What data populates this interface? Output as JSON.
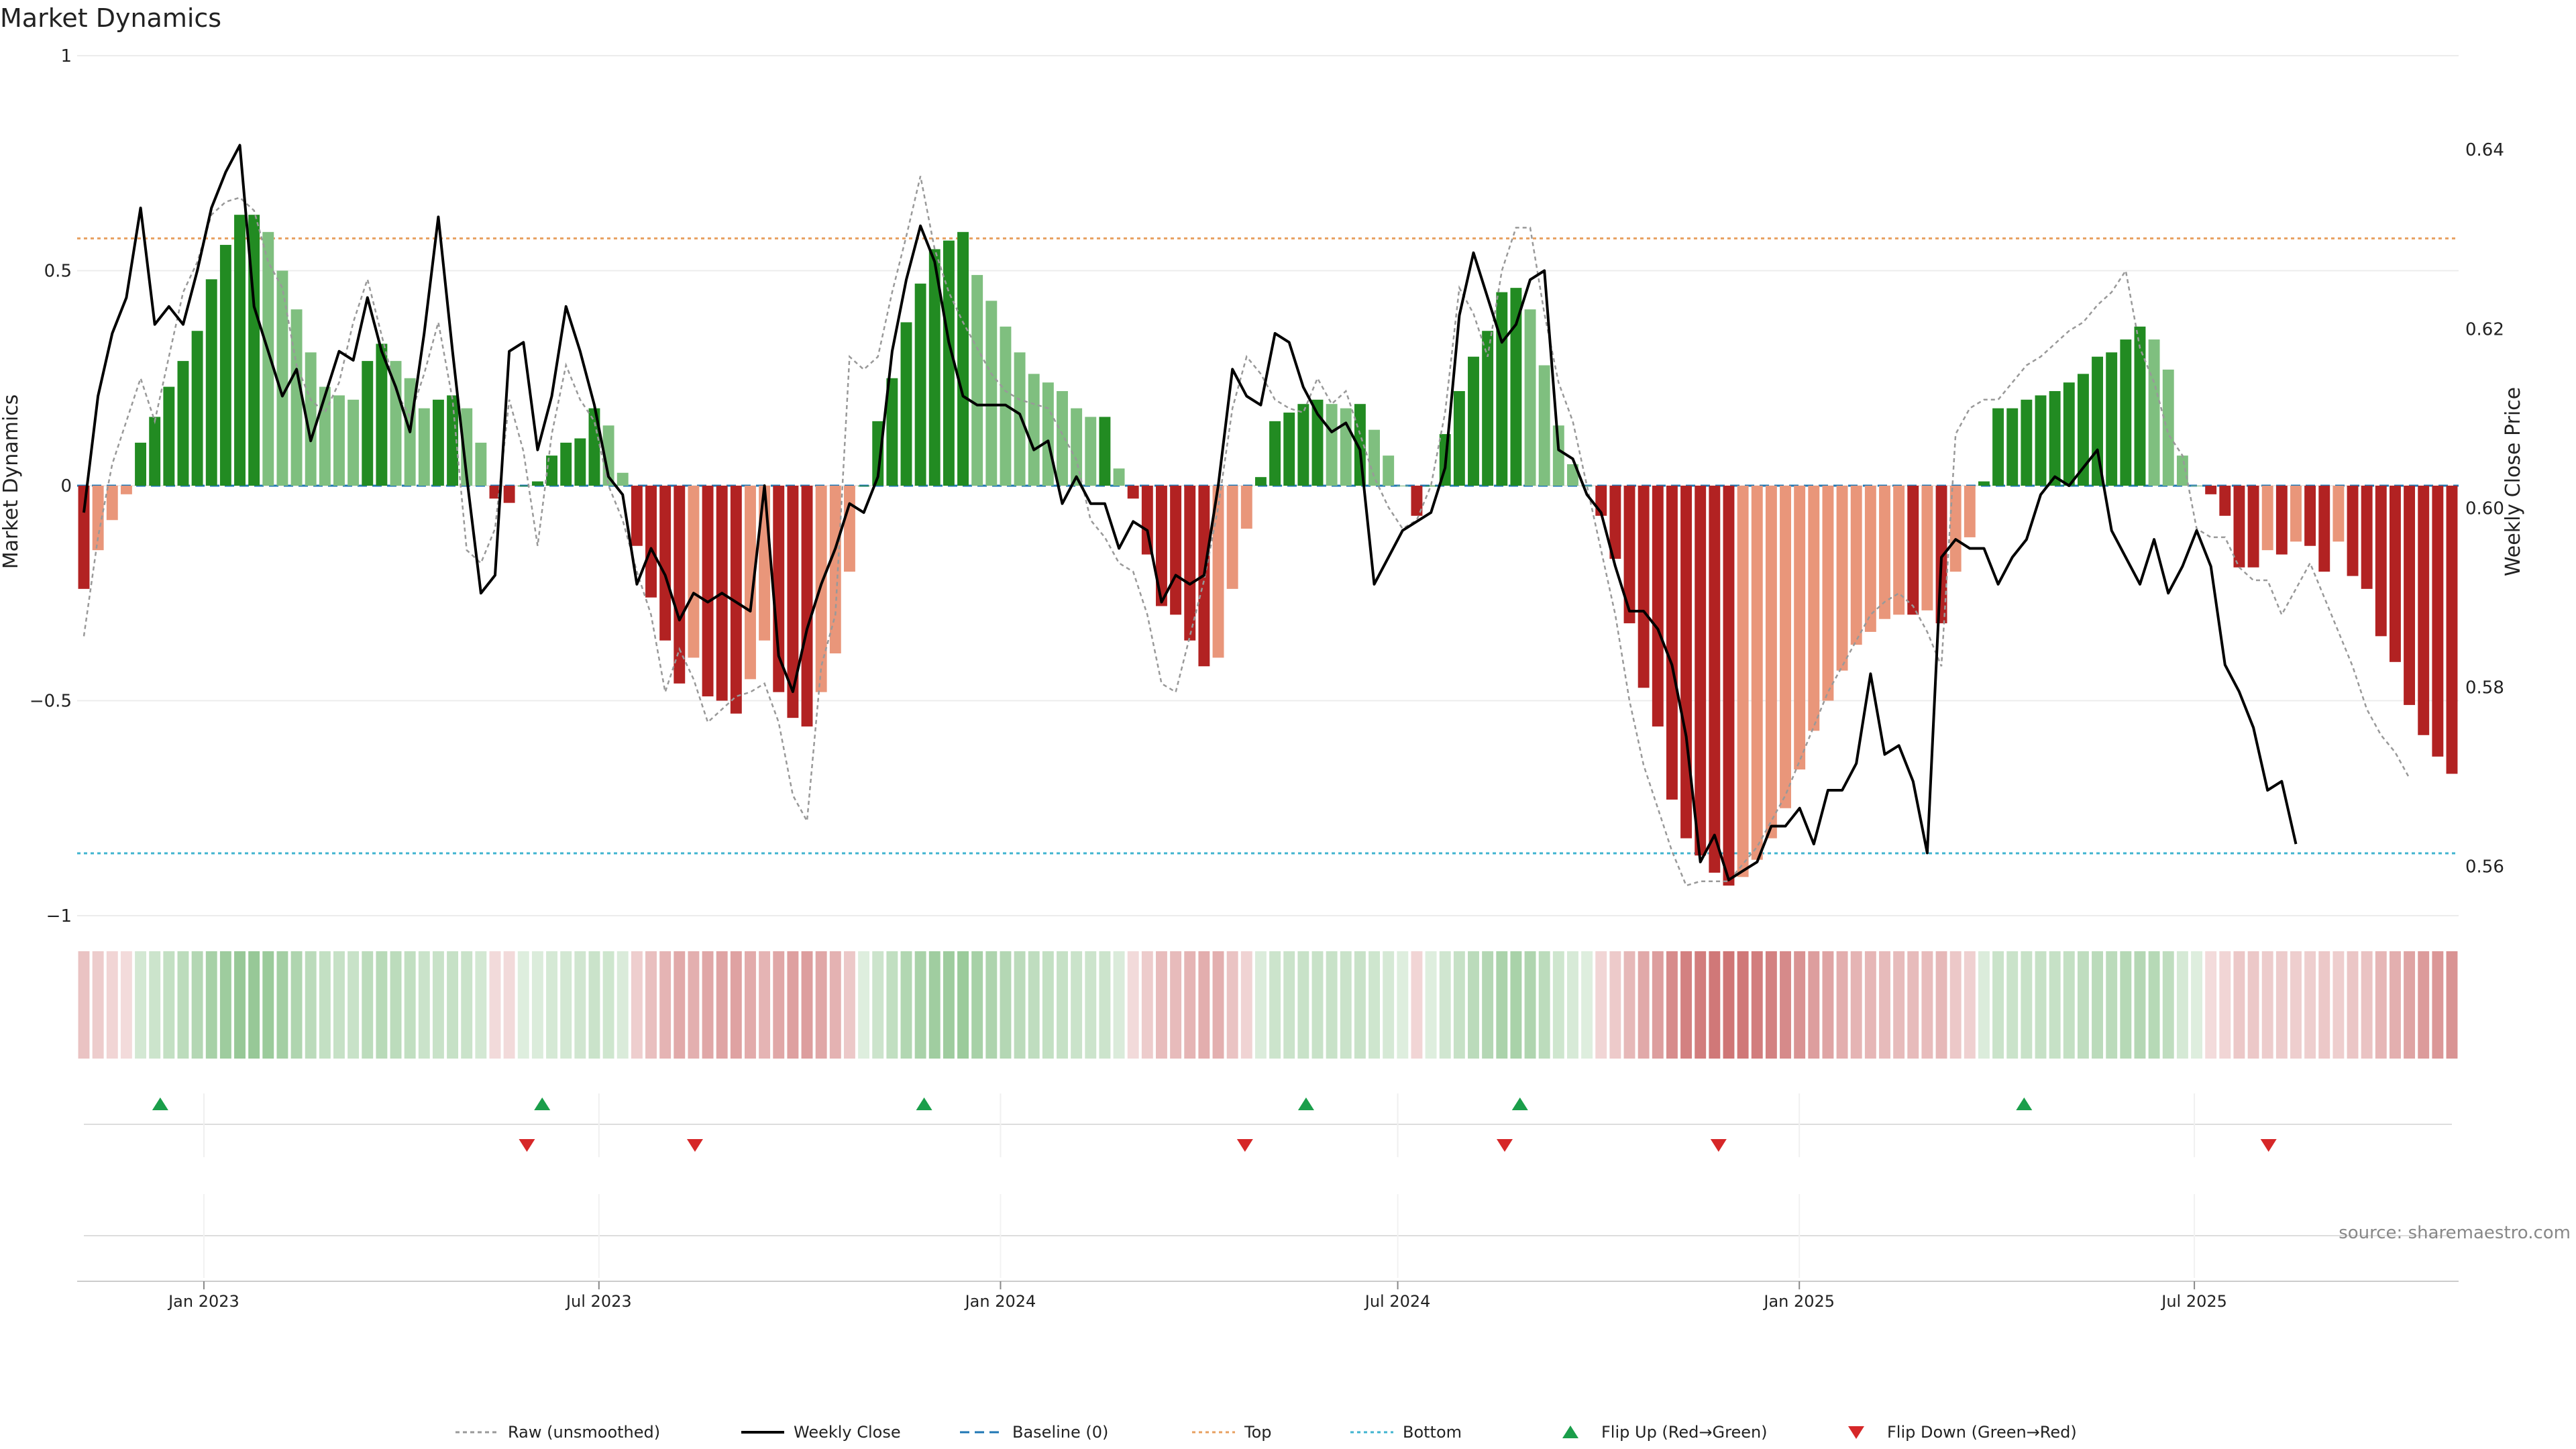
{
  "chart_data": {
    "type": "bar",
    "title": "Market Dynamics",
    "ylabel": "Market Dynamics",
    "y2label": "Weekly Close Price",
    "source": "source: sharemaestro.com",
    "ylim": [
      -1,
      1
    ],
    "y2lim": [
      0.5545,
      0.6505
    ],
    "y_ticks": [
      {
        "value": 1,
        "label": "1"
      },
      {
        "value": 0.5,
        "label": "0.5"
      },
      {
        "value": 0,
        "label": "0"
      },
      {
        "value": -0.5,
        "label": "−0.5"
      },
      {
        "value": -1,
        "label": "−1"
      }
    ],
    "y2_ticks": [
      {
        "value": 0.64,
        "label": "0.64"
      },
      {
        "value": 0.62,
        "label": "0.62"
      },
      {
        "value": 0.6,
        "label": "0.60"
      },
      {
        "value": 0.58,
        "label": "0.58"
      },
      {
        "value": 0.56,
        "label": "0.56"
      }
    ],
    "x_start": "2022-11-07",
    "x_end": "2025-10-27",
    "x_ticks": [
      {
        "date": "2023-01-01",
        "label": "Jan 2023"
      },
      {
        "date": "2023-07-01",
        "label": "Jul 2023"
      },
      {
        "date": "2024-01-01",
        "label": "Jan 2024"
      },
      {
        "date": "2024-07-01",
        "label": "Jul 2024"
      },
      {
        "date": "2025-01-01",
        "label": "Jan 2025"
      },
      {
        "date": "2025-07-01",
        "label": "Jul 2025"
      }
    ],
    "top_level": 0.575,
    "bottom_level": -0.855,
    "baseline": 0,
    "colors": {
      "strong_up": "#228b22",
      "weak_up": "#7fbf7f",
      "strong_down": "#b22222",
      "weak_down": "#e9967a",
      "raw": "#999999",
      "close": "#000000",
      "baseline": "#1f77b4",
      "top": "#e8a060",
      "bottom": "#40b4d0",
      "flip_up": "#1a9e4a",
      "flip_down": "#d62728"
    },
    "dynamics": [
      -0.24,
      -0.15,
      -0.08,
      -0.02,
      0.1,
      0.16,
      0.23,
      0.29,
      0.36,
      0.48,
      0.56,
      0.63,
      0.63,
      0.59,
      0.5,
      0.41,
      0.31,
      0.23,
      0.21,
      0.2,
      0.29,
      0.33,
      0.29,
      0.25,
      0.18,
      0.2,
      0.21,
      0.18,
      0.1,
      -0.03,
      -0.04,
      0,
      0.01,
      0.07,
      0.1,
      0.11,
      0.18,
      0.14,
      0.03,
      -0.14,
      -0.26,
      -0.36,
      -0.46,
      -0.4,
      -0.49,
      -0.5,
      -0.53,
      -0.45,
      -0.36,
      -0.48,
      -0.54,
      -0.56,
      -0.48,
      -0.39,
      -0.2,
      0,
      0.15,
      0.25,
      0.38,
      0.47,
      0.55,
      0.57,
      0.59,
      0.49,
      0.43,
      0.37,
      0.31,
      0.26,
      0.24,
      0.22,
      0.18,
      0.16,
      0.16,
      0.04,
      -0.03,
      -0.16,
      -0.28,
      -0.3,
      -0.36,
      -0.42,
      -0.4,
      -0.24,
      -0.1,
      0.02,
      0.15,
      0.17,
      0.19,
      0.2,
      0.19,
      0.18,
      0.19,
      0.13,
      0.07,
      0,
      -0.07,
      0,
      0.12,
      0.22,
      0.3,
      0.36,
      0.45,
      0.46,
      0.41,
      0.28,
      0.14,
      0.05,
      0,
      -0.07,
      -0.17,
      -0.32,
      -0.47,
      -0.56,
      -0.73,
      -0.82,
      -0.86,
      -0.9,
      -0.93,
      -0.91,
      -0.87,
      -0.82,
      -0.75,
      -0.66,
      -0.57,
      -0.5,
      -0.43,
      -0.37,
      -0.34,
      -0.31,
      -0.3,
      -0.3,
      -0.29,
      -0.32,
      -0.2,
      -0.12,
      0.01,
      0.18,
      0.18,
      0.2,
      0.21,
      0.22,
      0.24,
      0.26,
      0.3,
      0.31,
      0.34,
      0.37,
      0.34,
      0.27,
      0.07,
      0,
      -0.02,
      -0.07,
      -0.19,
      -0.19,
      -0.15,
      -0.16,
      -0.13,
      -0.14,
      -0.2,
      -0.13,
      -0.21,
      -0.24,
      -0.35,
      -0.41,
      -0.51,
      -0.58,
      -0.63,
      -0.67
    ],
    "close": [
      0.5995,
      0.6125,
      0.6195,
      0.6235,
      0.6335,
      0.6205,
      0.6225,
      0.6205,
      0.6265,
      0.6335,
      0.6375,
      0.6405,
      0.6225,
      0.6175,
      0.6125,
      0.6155,
      0.6075,
      0.6125,
      0.6175,
      0.6165,
      0.6235,
      0.6175,
      0.6135,
      0.6085,
      0.6195,
      0.6325,
      0.6175,
      0.6035,
      0.5905,
      0.5925,
      0.6175,
      0.6185,
      0.6065,
      0.6125,
      0.6225,
      0.6175,
      0.6115,
      0.6035,
      0.6015,
      0.5915,
      0.5955,
      0.5925,
      0.5875,
      0.5905,
      0.5895,
      0.5905,
      0.5895,
      0.5885,
      0.6025,
      0.5835,
      0.5795,
      0.5865,
      0.5915,
      0.5955,
      0.6005,
      0.5995,
      0.6035,
      0.6175,
      0.6255,
      0.6315,
      0.6275,
      0.6185,
      0.6125,
      0.6115,
      0.6115,
      0.6115,
      0.6105,
      0.6065,
      0.6075,
      0.6005,
      0.6035,
      0.6005,
      0.6005,
      0.5955,
      0.5985,
      0.5975,
      0.5895,
      0.5925,
      0.5915,
      0.5925,
      0.6025,
      0.6155,
      0.6125,
      0.6115,
      0.6195,
      0.6185,
      0.6135,
      0.6105,
      0.6085,
      0.6095,
      0.6065,
      0.5915,
      0.5945,
      0.5975,
      0.5985,
      0.5995,
      0.6045,
      0.6215,
      0.6285,
      0.6235,
      0.6185,
      0.6205,
      0.6255,
      0.6265,
      0.6065,
      0.6055,
      0.6015,
      0.5995,
      0.5935,
      0.5885,
      0.5885,
      0.5865,
      0.5825,
      0.5745,
      0.5605,
      0.5635,
      0.5585,
      0.5595,
      0.5605,
      0.5645,
      0.5645,
      0.5665,
      0.5625,
      0.5685,
      0.5685,
      0.5715,
      0.5815,
      0.5725,
      0.5735,
      0.5695,
      0.5615,
      0.5945,
      0.5965,
      0.5955,
      0.5955,
      0.5915,
      0.5945,
      0.5965,
      0.6015,
      0.6035,
      0.6025,
      0.6045,
      0.6065,
      0.5975,
      0.5945,
      0.5915,
      0.5965,
      0.5905,
      0.5935,
      0.5975,
      0.5935,
      0.5825,
      0.5795,
      0.5755,
      0.5685,
      0.5695,
      0.5625
    ],
    "raw": [
      -0.35,
      -0.12,
      0.05,
      0.15,
      0.25,
      0.15,
      0.3,
      0.45,
      0.52,
      0.63,
      0.66,
      0.67,
      0.64,
      0.52,
      0.46,
      0.28,
      0.2,
      0.17,
      0.24,
      0.38,
      0.48,
      0.35,
      0.22,
      0.16,
      0.26,
      0.38,
      0.2,
      -0.15,
      -0.18,
      -0.1,
      0.2,
      0.08,
      -0.14,
      0.12,
      0.28,
      0.2,
      0.15,
      0.0,
      -0.08,
      -0.2,
      -0.3,
      -0.48,
      -0.38,
      -0.45,
      -0.55,
      -0.52,
      -0.49,
      -0.48,
      -0.46,
      -0.55,
      -0.72,
      -0.78,
      -0.42,
      -0.3,
      0.3,
      0.27,
      0.3,
      0.45,
      0.58,
      0.72,
      0.55,
      0.45,
      0.38,
      0.32,
      0.26,
      0.22,
      0.2,
      0.19,
      0.18,
      0.12,
      0.06,
      -0.08,
      -0.12,
      -0.18,
      -0.2,
      -0.3,
      -0.46,
      -0.48,
      -0.35,
      -0.22,
      -0.05,
      0.18,
      0.3,
      0.26,
      0.2,
      0.18,
      0.17,
      0.25,
      0.19,
      0.22,
      0.12,
      0.02,
      -0.05,
      -0.1,
      -0.08,
      0.0,
      0.17,
      0.46,
      0.4,
      0.3,
      0.5,
      0.6,
      0.6,
      0.4,
      0.24,
      0.15,
      0.0,
      -0.15,
      -0.3,
      -0.5,
      -0.65,
      -0.75,
      -0.85,
      -0.93,
      -0.92,
      -0.92,
      -0.92,
      -0.88,
      -0.84,
      -0.78,
      -0.72,
      -0.64,
      -0.56,
      -0.48,
      -0.42,
      -0.36,
      -0.3,
      -0.27,
      -0.25,
      -0.28,
      -0.34,
      -0.42,
      0.12,
      0.18,
      0.2,
      0.2,
      0.24,
      0.28,
      0.3,
      0.33,
      0.36,
      0.38,
      0.42,
      0.45,
      0.5,
      0.32,
      0.24,
      0.12,
      0.07,
      -0.1,
      -0.12,
      -0.12,
      -0.19,
      -0.22,
      -0.22,
      -0.3,
      -0.24,
      -0.18,
      -0.26,
      -0.34,
      -0.42,
      -0.52,
      -0.58,
      -0.62,
      -0.68
    ],
    "flip_up_dates": [
      "2022-12-12",
      "2023-06-05",
      "2023-11-27",
      "2024-05-20",
      "2024-08-26",
      "2025-04-14"
    ],
    "flip_down_dates": [
      "2023-05-29",
      "2023-08-14",
      "2024-04-22",
      "2024-08-19",
      "2024-11-25",
      "2025-08-04"
    ],
    "legend": [
      "Raw (unsmoothed)",
      "Weekly Close",
      "Baseline (0)",
      "Top",
      "Bottom",
      "Flip Up (Red→Green)",
      "Flip Down (Green→Red)"
    ]
  }
}
